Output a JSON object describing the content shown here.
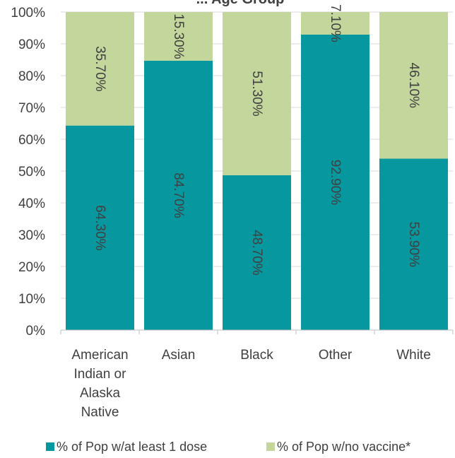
{
  "chart_data": {
    "type": "bar",
    "stacked": true,
    "percent": true,
    "title": "... Age Group",
    "categories": [
      [
        "American",
        "Indian or",
        "Alaska",
        "Native"
      ],
      [
        "Asian"
      ],
      [
        "Black"
      ],
      [
        "Other"
      ],
      [
        "White"
      ]
    ],
    "series": [
      {
        "name": "% of Pop w/at least 1 dose",
        "color": "#07979e",
        "values": [
          64.3,
          84.7,
          48.7,
          92.9,
          53.9
        ],
        "labels": [
          "64.30%",
          "84.70%",
          "48.70%",
          "92.90%",
          "53.90%"
        ]
      },
      {
        "name": "% of Pop w/no vaccine*",
        "color": "#c3d69b",
        "values": [
          35.7,
          15.3,
          51.3,
          7.1,
          46.1
        ],
        "labels": [
          "35.70%",
          "15.30%",
          "51.30%",
          "7.10%",
          "46.10%"
        ]
      }
    ],
    "ylim": [
      0,
      100
    ],
    "yticks": [
      "0%",
      "10%",
      "20%",
      "30%",
      "40%",
      "50%",
      "60%",
      "70%",
      "80%",
      "90%",
      "100%"
    ],
    "grid": true,
    "legend_position": "bottom"
  }
}
